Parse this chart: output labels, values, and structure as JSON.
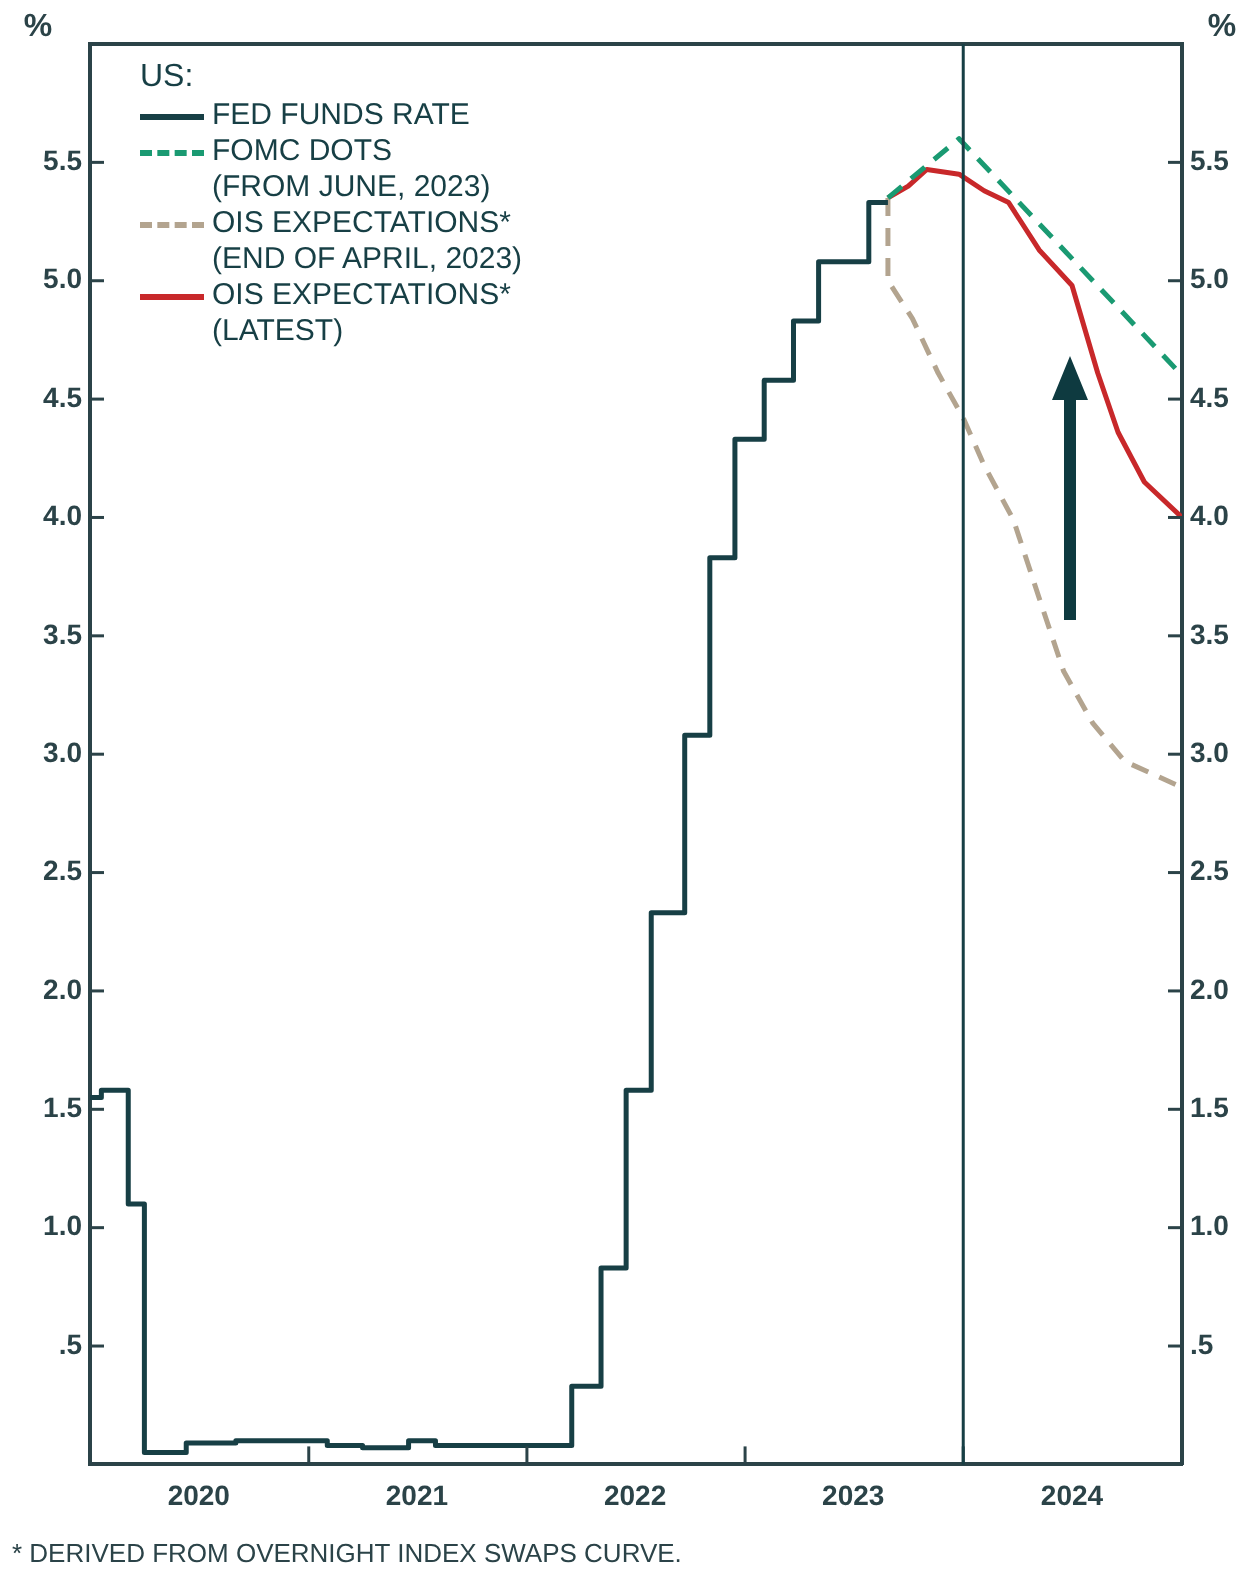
{
  "chart_data": {
    "type": "line",
    "ylabel": "%",
    "y2label": "%",
    "legend": "top left",
    "legend_title": "US:",
    "xlim": [
      "2020-01-01",
      "2025-01-01"
    ],
    "xticks": [
      {
        "value": "2020-07-01",
        "label": "2020"
      },
      {
        "value": "2021-01-01",
        "label": null
      },
      {
        "value": "2021-07-01",
        "label": "2021"
      },
      {
        "value": "2022-01-01",
        "label": null
      },
      {
        "value": "2022-07-01",
        "label": "2022"
      },
      {
        "value": "2023-01-01",
        "label": null
      },
      {
        "value": "2023-07-01",
        "label": "2023"
      },
      {
        "value": "2024-01-01",
        "label": null
      },
      {
        "value": "2024-07-01",
        "label": "2024"
      }
    ],
    "ylim": [
      0,
      6
    ],
    "yticks": [
      {
        "value": 0.5,
        "label": ".5"
      },
      {
        "value": 1,
        "label": "1.0"
      },
      1.5,
      {
        "value": 2,
        "label": "2.0"
      },
      2.5,
      {
        "value": 3,
        "label": "3.0"
      },
      3.5,
      {
        "value": 4,
        "label": "4.0"
      },
      4.5,
      {
        "value": 5,
        "label": "5.0"
      },
      5.5
    ],
    "y2lim": [
      0,
      6
    ],
    "y2ticks": [
      {
        "value": 0.5,
        "label": ".5"
      },
      {
        "value": 1,
        "label": "1.0"
      },
      1.5,
      {
        "value": 2,
        "label": "2.0"
      },
      2.5,
      {
        "value": 3,
        "label": "3.0"
      },
      3.5,
      {
        "value": 4,
        "label": "4.0"
      },
      4.5,
      {
        "value": 5,
        "label": "5.0"
      },
      5.5
    ],
    "ref_lines": [
      {
        "axis": "x",
        "value": "2024-01-01",
        "color": "#173f45"
      }
    ],
    "annotations": [
      "* DERIVED FROM OVERNIGHT INDEX SWAPS CURVE."
    ],
    "series": [
      {
        "name": "FED FUNDS RATE",
        "type": "step",
        "color": "#173f45",
        "line_style": "solid",
        "x": [
          "2020-01-01",
          "2020-01-20",
          "2020-03-05",
          "2020-04-01",
          "2020-06-10",
          "2020-09-01",
          "2021-02-01",
          "2021-04-01",
          "2021-06-17",
          "2021-08-01",
          "2022-03-17",
          "2022-05-05",
          "2022-06-16",
          "2022-07-28",
          "2022-09-22",
          "2022-11-03",
          "2022-12-15",
          "2023-02-02",
          "2023-03-23",
          "2023-05-04",
          "2023-07-27",
          "2023-08-28"
        ],
        "values": [
          1.55,
          1.58,
          1.1,
          0.05,
          0.09,
          0.1,
          0.08,
          0.07,
          0.1,
          0.08,
          0.33,
          0.83,
          1.58,
          2.33,
          3.08,
          3.83,
          4.33,
          4.58,
          4.83,
          5.08,
          5.33,
          5.33
        ]
      },
      {
        "name": "FOMC DOTS (FROM JUNE, 2023)",
        "color": "#1a9a72",
        "line_style": "dashed",
        "x": [
          "2023-08-28",
          "2023-12-25",
          "2025-01-01"
        ],
        "values": [
          5.35,
          5.6,
          4.6
        ]
      },
      {
        "name": "OIS EXPECTATIONS* (END OF APRIL, 2023)",
        "color": "#b3a48f",
        "line_style": "dashed",
        "x": [
          "2023-08-28",
          "2023-08-28",
          "2023-10-08",
          "2023-11-20",
          "2024-01-01",
          "2024-02-05",
          "2024-03-25",
          "2024-05-07",
          "2024-06-17",
          "2024-08-05",
          "2024-09-27",
          "2025-01-01"
        ],
        "values": [
          5.35,
          5.0,
          4.84,
          4.61,
          4.42,
          4.22,
          3.99,
          3.66,
          3.35,
          3.13,
          2.97,
          2.86
        ]
      },
      {
        "name": "OIS EXPECTATIONS* (LATEST)",
        "color": "#c8282a",
        "line_style": "solid",
        "x": [
          "2023-08-28",
          "2023-10-01",
          "2023-11-01",
          "2023-12-25",
          "2024-02-05",
          "2024-03-17",
          "2024-05-07",
          "2024-07-01",
          "2024-08-13",
          "2024-09-16",
          "2024-10-30",
          "2025-01-01"
        ],
        "values": [
          5.35,
          5.4,
          5.47,
          5.45,
          5.38,
          5.33,
          5.13,
          4.98,
          4.61,
          4.36,
          4.15,
          4.0
        ]
      }
    ]
  }
}
